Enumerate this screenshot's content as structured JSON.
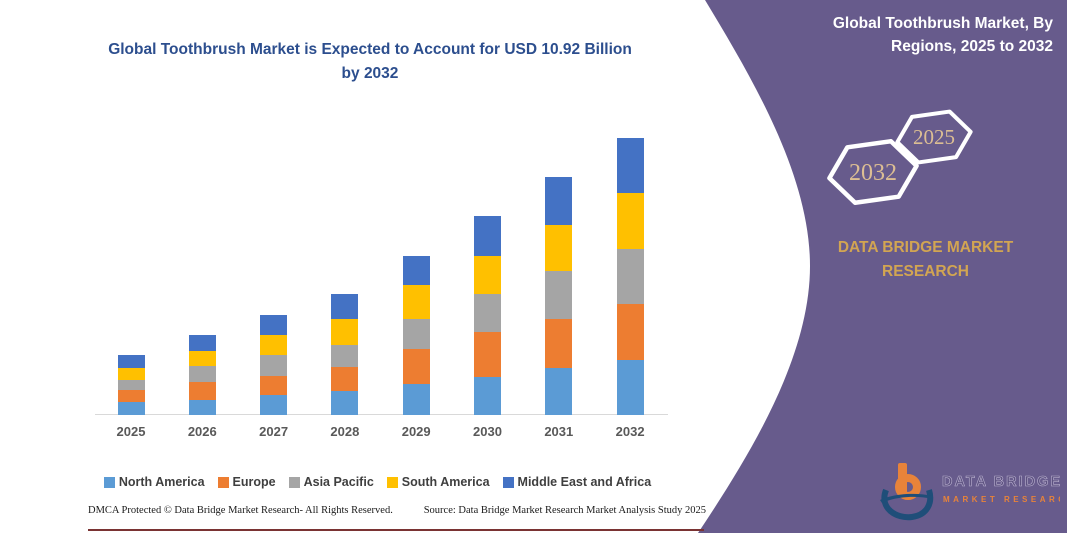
{
  "title": "Global Toothbrush Market is Expected to Account for USD 10.92 Billion by 2032",
  "colors": {
    "title_text": "#2C4E8E",
    "axis_line": "#D9D9D9",
    "x_label_text": "#595959",
    "panel_bg": "#675B8C",
    "hexagon_outline": "#FFFFFF",
    "hex_year_text": "#DCBE93",
    "brand_gold": "#D2A552",
    "footer_rule": "#7A3333",
    "logo_orange": "#E8833A",
    "logo_blue": "#1F4E79"
  },
  "chart_data": {
    "type": "bar",
    "stacked": true,
    "title": "Global Toothbrush Market is Expected to Account for USD 10.92 Billion by 2032",
    "unit": "USD Billion",
    "categories": [
      "2025",
      "2026",
      "2027",
      "2028",
      "2029",
      "2030",
      "2031",
      "2032"
    ],
    "series": [
      {
        "name": "North America",
        "color": "#5B9BD5",
        "values": [
          0.51,
          0.59,
          0.79,
          0.95,
          1.22,
          1.5,
          1.85,
          2.17
        ]
      },
      {
        "name": "Europe",
        "color": "#ED7D31",
        "values": [
          0.47,
          0.71,
          0.75,
          0.95,
          1.38,
          1.77,
          1.93,
          2.21
        ]
      },
      {
        "name": "Asia Pacific",
        "color": "#A5A5A5",
        "values": [
          0.39,
          0.63,
          0.83,
          0.87,
          1.18,
          1.5,
          1.89,
          2.17
        ]
      },
      {
        "name": "South America",
        "color": "#FFC000",
        "values": [
          0.47,
          0.59,
          0.79,
          1.02,
          1.34,
          1.5,
          1.81,
          2.21
        ]
      },
      {
        "name": "Middle East and Africa",
        "color": "#4472C4",
        "values": [
          0.51,
          0.63,
          0.79,
          0.99,
          1.14,
          1.58,
          1.89,
          2.16
        ]
      }
    ],
    "totals_by_year": [
      2.35,
      3.15,
      3.95,
      4.78,
      6.26,
      7.85,
      9.37,
      10.92
    ],
    "highlight_value_2032": "USD 10.92 Billion",
    "ylim": [
      0,
      11
    ],
    "y_axis_visible": false,
    "gridlines": false,
    "legend_position": "bottom"
  },
  "panel": {
    "header": "Global Toothbrush Market, By Regions, 2025 to 2032",
    "hexagons": [
      {
        "label": "2032"
      },
      {
        "label": "2025"
      }
    ],
    "brand": "DATA BRIDGE MARKET RESEARCH",
    "logo": {
      "text_top": "DATA BRIDGE",
      "text_bottom": "MARKET RESEARCH"
    }
  },
  "footer": {
    "left": "DMCA Protected © Data Bridge Market Research-  All Rights Reserved.",
    "right": "Source: Data Bridge Market Research  Market Analysis Study 2025"
  }
}
